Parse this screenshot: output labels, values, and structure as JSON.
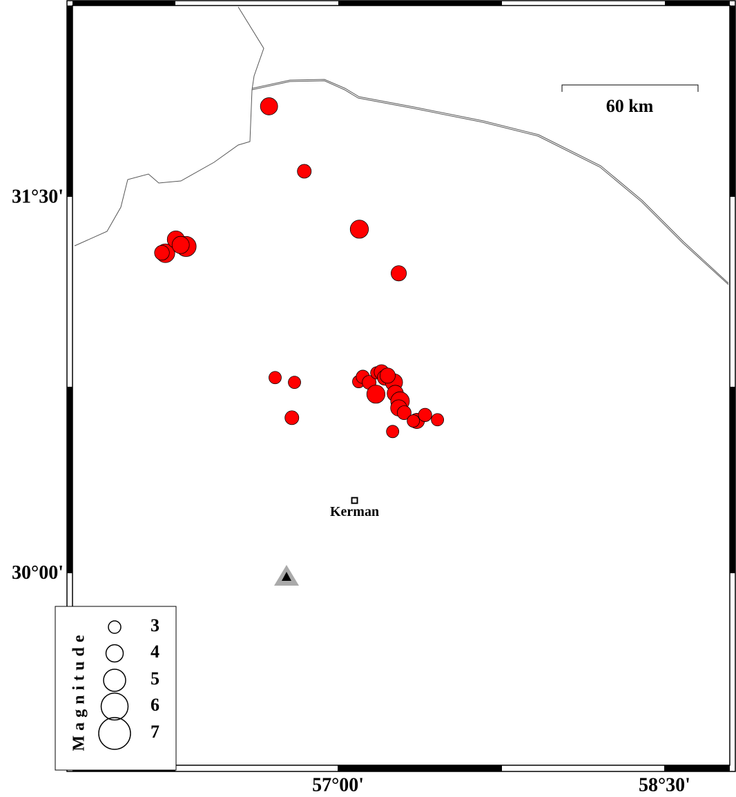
{
  "map": {
    "xlim": [
      55.78,
      58.8
    ],
    "ylim": [
      29.23,
      32.26
    ],
    "xticks": [
      {
        "value": 57,
        "label": "57°00'"
      },
      {
        "value": 58.5,
        "label": "58°30'"
      }
    ],
    "yticks": [
      {
        "value": 31.5,
        "label": "31°30'"
      },
      {
        "value": 30,
        "label": "30°00'"
      }
    ],
    "scale_label": "60 km",
    "city": {
      "name": "Kerman",
      "lon": 57.076,
      "lat": 30.286
    },
    "event_color": "#ff0000",
    "events": [
      {
        "lon": 56.683,
        "lat": 31.858,
        "mag": 4
      },
      {
        "lon": 56.845,
        "lat": 31.599,
        "mag": 3.3
      },
      {
        "lon": 57.098,
        "lat": 31.368,
        "mag": 4.2
      },
      {
        "lon": 57.279,
        "lat": 31.192,
        "mag": 3.6
      },
      {
        "lon": 56.302,
        "lat": 31.299,
        "mag": 4.6
      },
      {
        "lon": 56.207,
        "lat": 31.272,
        "mag": 4.3
      },
      {
        "lon": 56.255,
        "lat": 31.327,
        "mag": 4
      },
      {
        "lon": 56.277,
        "lat": 31.305,
        "mag": 4
      },
      {
        "lon": 56.191,
        "lat": 31.274,
        "mag": 3.5
      },
      {
        "lon": 56.711,
        "lat": 30.776,
        "mag": 3
      },
      {
        "lon": 56.8,
        "lat": 30.757,
        "mag": 3
      },
      {
        "lon": 56.788,
        "lat": 30.616,
        "mag": 3.3
      },
      {
        "lon": 57.095,
        "lat": 30.76,
        "mag": 3
      },
      {
        "lon": 57.114,
        "lat": 30.779,
        "mag": 3.2
      },
      {
        "lon": 57.143,
        "lat": 30.757,
        "mag": 3.3
      },
      {
        "lon": 57.178,
        "lat": 30.795,
        "mag": 3
      },
      {
        "lon": 57.2,
        "lat": 30.798,
        "mag": 3.5
      },
      {
        "lon": 57.216,
        "lat": 30.776,
        "mag": 3.6
      },
      {
        "lon": 57.257,
        "lat": 30.757,
        "mag": 4
      },
      {
        "lon": 57.174,
        "lat": 30.71,
        "mag": 4.2
      },
      {
        "lon": 57.263,
        "lat": 30.713,
        "mag": 3.8
      },
      {
        "lon": 57.285,
        "lat": 30.682,
        "mag": 4.3
      },
      {
        "lon": 57.279,
        "lat": 30.655,
        "mag": 3.8
      },
      {
        "lon": 57.304,
        "lat": 30.636,
        "mag": 3.3
      },
      {
        "lon": 57.362,
        "lat": 30.603,
        "mag": 3.6
      },
      {
        "lon": 57.346,
        "lat": 30.603,
        "mag": 3
      },
      {
        "lon": 57.4,
        "lat": 30.627,
        "mag": 3.2
      },
      {
        "lon": 57.457,
        "lat": 30.608,
        "mag": 3
      },
      {
        "lon": 57.251,
        "lat": 30.561,
        "mag": 3
      },
      {
        "lon": 57.228,
        "lat": 30.784,
        "mag": 3.6
      }
    ],
    "legend": {
      "title": "Magnitude",
      "magnitudes": [
        3,
        4,
        5,
        6,
        7
      ]
    }
  }
}
